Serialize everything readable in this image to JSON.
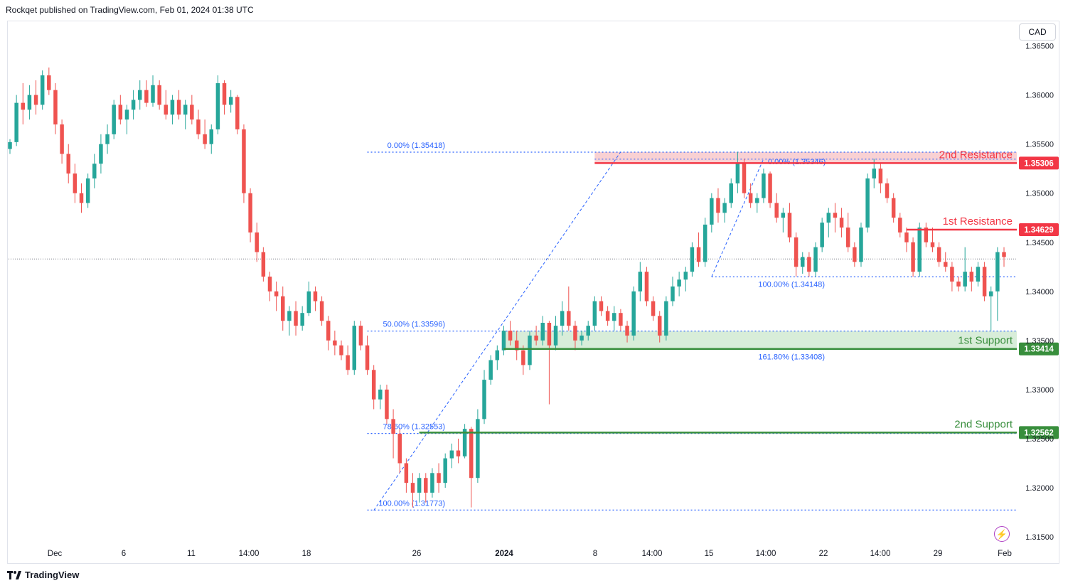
{
  "header": {
    "publisher_text": "Rockqet published on TradingView.com, Feb 01, 2024 01:38 UTC"
  },
  "footer": {
    "brand": "TradingView"
  },
  "axis": {
    "currency": "CAD"
  },
  "colors": {
    "up": "#26a69a",
    "down": "#ef5350",
    "fib": "#2962ff",
    "resistance": "#f23645",
    "support": "#388e3c",
    "zone_res": "#f8c6c8",
    "zone_sup": "#c8e6c9"
  },
  "chart_data": {
    "type": "candlestick",
    "ylim": [
      1.3145,
      1.3675
    ],
    "y_ticks": [
      "1.36500",
      "1.36000",
      "1.35500",
      "1.35000",
      "1.34500",
      "1.34000",
      "1.33500",
      "1.33000",
      "1.32500",
      "1.32000",
      "1.31500"
    ],
    "x_ticks": [
      "Dec",
      "6",
      "11",
      "14:00",
      "18",
      "26",
      "2024",
      "8",
      "14:00",
      "15",
      "14:00",
      "22",
      "14:00",
      "29",
      "Feb"
    ],
    "current_price": 1.3433,
    "levels": [
      {
        "name": "2nd Resistance",
        "price": 1.35306,
        "label": "1.35306"
      },
      {
        "name": "1st Resistance",
        "price": 1.34629,
        "label": "1.34629"
      },
      {
        "name": "1st Support",
        "price": 1.33414,
        "label": "1.33414"
      },
      {
        "name": "2nd Support",
        "price": 1.32562,
        "label": "1.32562"
      }
    ],
    "fib_labels": [
      {
        "text": "0.00% (1.35418)",
        "price": 1.35418
      },
      {
        "text": "50.00% (1.33596)",
        "price": 1.33596
      },
      {
        "text": "78.60% (1.32553)",
        "price": 1.32553
      },
      {
        "text": "100.00% (1.31773)",
        "price": 1.31773
      },
      {
        "text": "0.00% (1.35346)",
        "price": 1.35346
      },
      {
        "text": "100.00% (1.34148)",
        "price": 1.34148
      },
      {
        "text": "161.80% (1.33408)",
        "price": 1.33408
      }
    ],
    "candles": [
      [
        1.3545,
        1.3555,
        1.354,
        1.3552
      ],
      [
        1.3552,
        1.36,
        1.3548,
        1.3592
      ],
      [
        1.3592,
        1.3612,
        1.357,
        1.3585
      ],
      [
        1.3585,
        1.361,
        1.3575,
        1.36
      ],
      [
        1.36,
        1.3615,
        1.358,
        1.359
      ],
      [
        1.359,
        1.3625,
        1.3585,
        1.362
      ],
      [
        1.362,
        1.3628,
        1.36,
        1.3605
      ],
      [
        1.3605,
        1.3612,
        1.356,
        1.357
      ],
      [
        1.357,
        1.3575,
        1.353,
        1.354
      ],
      [
        1.354,
        1.355,
        1.351,
        1.352
      ],
      [
        1.352,
        1.353,
        1.349,
        1.35
      ],
      [
        1.35,
        1.351,
        1.348,
        1.349
      ],
      [
        1.349,
        1.352,
        1.3485,
        1.3515
      ],
      [
        1.3515,
        1.354,
        1.3505,
        1.353
      ],
      [
        1.353,
        1.356,
        1.352,
        1.355
      ],
      [
        1.355,
        1.357,
        1.354,
        1.356
      ],
      [
        1.356,
        1.3595,
        1.3555,
        1.359
      ],
      [
        1.359,
        1.36,
        1.357,
        1.3575
      ],
      [
        1.3575,
        1.359,
        1.356,
        1.3585
      ],
      [
        1.3585,
        1.3605,
        1.3575,
        1.3595
      ],
      [
        1.3595,
        1.3615,
        1.3585,
        1.3605
      ],
      [
        1.3605,
        1.3615,
        1.3588,
        1.3592
      ],
      [
        1.3592,
        1.362,
        1.3588,
        1.361
      ],
      [
        1.361,
        1.3615,
        1.3585,
        1.359
      ],
      [
        1.359,
        1.3605,
        1.3575,
        1.358
      ],
      [
        1.358,
        1.36,
        1.357,
        1.3595
      ],
      [
        1.3595,
        1.3605,
        1.3575,
        1.358
      ],
      [
        1.358,
        1.3595,
        1.3565,
        1.359
      ],
      [
        1.359,
        1.36,
        1.357,
        1.3575
      ],
      [
        1.3575,
        1.3585,
        1.3555,
        1.356
      ],
      [
        1.356,
        1.3575,
        1.3545,
        1.355
      ],
      [
        1.355,
        1.357,
        1.354,
        1.3565
      ],
      [
        1.3565,
        1.362,
        1.356,
        1.3612
      ],
      [
        1.3612,
        1.3615,
        1.358,
        1.359
      ],
      [
        1.359,
        1.3605,
        1.3582,
        1.3598
      ],
      [
        1.3598,
        1.36,
        1.356,
        1.3565
      ],
      [
        1.3565,
        1.357,
        1.349,
        1.35
      ],
      [
        1.35,
        1.3505,
        1.345,
        1.346
      ],
      [
        1.346,
        1.347,
        1.343,
        1.344
      ],
      [
        1.344,
        1.3445,
        1.341,
        1.3415
      ],
      [
        1.3415,
        1.342,
        1.339,
        1.34
      ],
      [
        1.34,
        1.341,
        1.338,
        1.3395
      ],
      [
        1.3395,
        1.3405,
        1.336,
        1.337
      ],
      [
        1.337,
        1.3385,
        1.3355,
        1.338
      ],
      [
        1.338,
        1.339,
        1.3355,
        1.3365
      ],
      [
        1.3365,
        1.3385,
        1.336,
        1.3378
      ],
      [
        1.3378,
        1.341,
        1.3375,
        1.34
      ],
      [
        1.34,
        1.3405,
        1.338,
        1.339
      ],
      [
        1.339,
        1.3395,
        1.3365,
        1.337
      ],
      [
        1.337,
        1.3375,
        1.334,
        1.335
      ],
      [
        1.335,
        1.336,
        1.3335,
        1.3345
      ],
      [
        1.3345,
        1.335,
        1.333,
        1.3335
      ],
      [
        1.3335,
        1.3345,
        1.3315,
        1.332
      ],
      [
        1.332,
        1.337,
        1.3315,
        1.3365
      ],
      [
        1.3365,
        1.337,
        1.334,
        1.3345
      ],
      [
        1.3345,
        1.3355,
        1.3315,
        1.332
      ],
      [
        1.332,
        1.3325,
        1.328,
        1.329
      ],
      [
        1.329,
        1.3305,
        1.328,
        1.33
      ],
      [
        1.33,
        1.3305,
        1.3265,
        1.327
      ],
      [
        1.327,
        1.328,
        1.323,
        1.3255
      ],
      [
        1.3255,
        1.326,
        1.3215,
        1.3225
      ],
      [
        1.3225,
        1.323,
        1.3195,
        1.3205
      ],
      [
        1.3205,
        1.3215,
        1.318,
        1.3195
      ],
      [
        1.3195,
        1.3215,
        1.3185,
        1.321
      ],
      [
        1.321,
        1.3215,
        1.3185,
        1.3195
      ],
      [
        1.3195,
        1.322,
        1.319,
        1.3215
      ],
      [
        1.3215,
        1.3225,
        1.3195,
        1.3205
      ],
      [
        1.3205,
        1.3235,
        1.32,
        1.323
      ],
      [
        1.323,
        1.3245,
        1.322,
        1.3238
      ],
      [
        1.3238,
        1.325,
        1.3225,
        1.3232
      ],
      [
        1.3232,
        1.3265,
        1.323,
        1.326
      ],
      [
        1.326,
        1.3262,
        1.318,
        1.321
      ],
      [
        1.321,
        1.328,
        1.3205,
        1.327
      ],
      [
        1.327,
        1.332,
        1.3265,
        1.331
      ],
      [
        1.331,
        1.3335,
        1.3305,
        1.333
      ],
      [
        1.333,
        1.3345,
        1.332,
        1.334
      ],
      [
        1.334,
        1.3365,
        1.3335,
        1.336
      ],
      [
        1.336,
        1.337,
        1.3345,
        1.335
      ],
      [
        1.335,
        1.336,
        1.333,
        1.334
      ],
      [
        1.334,
        1.3345,
        1.3315,
        1.3325
      ],
      [
        1.3325,
        1.336,
        1.332,
        1.3355
      ],
      [
        1.3355,
        1.3365,
        1.3345,
        1.335
      ],
      [
        1.335,
        1.3375,
        1.3345,
        1.3368
      ],
      [
        1.3368,
        1.337,
        1.3285,
        1.3345
      ],
      [
        1.3345,
        1.3375,
        1.334,
        1.3365
      ],
      [
        1.3365,
        1.339,
        1.3355,
        1.338
      ],
      [
        1.338,
        1.3405,
        1.336,
        1.3365
      ],
      [
        1.3365,
        1.337,
        1.334,
        1.335
      ],
      [
        1.335,
        1.336,
        1.3345,
        1.3355
      ],
      [
        1.3355,
        1.337,
        1.335,
        1.3365
      ],
      [
        1.3365,
        1.3395,
        1.336,
        1.339
      ],
      [
        1.339,
        1.3395,
        1.3375,
        1.338
      ],
      [
        1.338,
        1.3385,
        1.3365,
        1.337
      ],
      [
        1.337,
        1.3385,
        1.336,
        1.3378
      ],
      [
        1.3378,
        1.3382,
        1.336,
        1.3365
      ],
      [
        1.3365,
        1.337,
        1.3348,
        1.3355
      ],
      [
        1.3355,
        1.3405,
        1.335,
        1.34
      ],
      [
        1.34,
        1.343,
        1.339,
        1.342
      ],
      [
        1.342,
        1.3425,
        1.3385,
        1.339
      ],
      [
        1.339,
        1.3395,
        1.337,
        1.3375
      ],
      [
        1.3375,
        1.338,
        1.3348,
        1.3355
      ],
      [
        1.3355,
        1.3395,
        1.335,
        1.339
      ],
      [
        1.339,
        1.3415,
        1.3385,
        1.3405
      ],
      [
        1.3405,
        1.342,
        1.3395,
        1.3412
      ],
      [
        1.3412,
        1.3425,
        1.34,
        1.342
      ],
      [
        1.342,
        1.345,
        1.3415,
        1.3445
      ],
      [
        1.3445,
        1.346,
        1.3425,
        1.343
      ],
      [
        1.343,
        1.3475,
        1.3425,
        1.3468
      ],
      [
        1.3468,
        1.35,
        1.346,
        1.3495
      ],
      [
        1.3495,
        1.3505,
        1.347,
        1.348
      ],
      [
        1.348,
        1.3495,
        1.347,
        1.349
      ],
      [
        1.349,
        1.3515,
        1.3485,
        1.351
      ],
      [
        1.351,
        1.3542,
        1.35,
        1.353
      ],
      [
        1.353,
        1.3535,
        1.3495,
        1.35
      ],
      [
        1.35,
        1.351,
        1.3485,
        1.349
      ],
      [
        1.349,
        1.35,
        1.348,
        1.3495
      ],
      [
        1.3495,
        1.3525,
        1.349,
        1.352
      ],
      [
        1.352,
        1.3522,
        1.3485,
        1.349
      ],
      [
        1.349,
        1.35,
        1.347,
        1.3475
      ],
      [
        1.3475,
        1.3485,
        1.346,
        1.348
      ],
      [
        1.348,
        1.349,
        1.345,
        1.3455
      ],
      [
        1.3455,
        1.346,
        1.3415,
        1.3425
      ],
      [
        1.3425,
        1.344,
        1.3418,
        1.3435
      ],
      [
        1.3435,
        1.344,
        1.3415,
        1.342
      ],
      [
        1.342,
        1.345,
        1.3415,
        1.3445
      ],
      [
        1.3445,
        1.3475,
        1.344,
        1.347
      ],
      [
        1.347,
        1.3485,
        1.3455,
        1.348
      ],
      [
        1.348,
        1.349,
        1.346,
        1.3475
      ],
      [
        1.3475,
        1.3485,
        1.3455,
        1.3465
      ],
      [
        1.3465,
        1.348,
        1.344,
        1.3445
      ],
      [
        1.3445,
        1.345,
        1.3425,
        1.343
      ],
      [
        1.343,
        1.347,
        1.3425,
        1.3465
      ],
      [
        1.3465,
        1.352,
        1.346,
        1.3515
      ],
      [
        1.3515,
        1.3535,
        1.3505,
        1.3525
      ],
      [
        1.3525,
        1.353,
        1.35,
        1.351
      ],
      [
        1.351,
        1.3515,
        1.349,
        1.3495
      ],
      [
        1.3495,
        1.35,
        1.347,
        1.3475
      ],
      [
        1.3475,
        1.348,
        1.3455,
        1.346
      ],
      [
        1.346,
        1.3465,
        1.344,
        1.345
      ],
      [
        1.345,
        1.3455,
        1.3415,
        1.342
      ],
      [
        1.342,
        1.347,
        1.3415,
        1.3465
      ],
      [
        1.3465,
        1.347,
        1.3445,
        1.345
      ],
      [
        1.345,
        1.3465,
        1.344,
        1.3445
      ],
      [
        1.3445,
        1.345,
        1.3425,
        1.343
      ],
      [
        1.343,
        1.344,
        1.342,
        1.3425
      ],
      [
        1.3425,
        1.343,
        1.34,
        1.341
      ],
      [
        1.341,
        1.3415,
        1.34,
        1.3405
      ],
      [
        1.3405,
        1.3445,
        1.34,
        1.342
      ],
      [
        1.342,
        1.3425,
        1.34,
        1.341
      ],
      [
        1.341,
        1.343,
        1.3405,
        1.3425
      ],
      [
        1.3425,
        1.343,
        1.339,
        1.3395
      ],
      [
        1.3395,
        1.3405,
        1.336,
        1.34
      ],
      [
        1.34,
        1.3445,
        1.337,
        1.344
      ],
      [
        1.344,
        1.3445,
        1.3425,
        1.3435
      ]
    ]
  }
}
